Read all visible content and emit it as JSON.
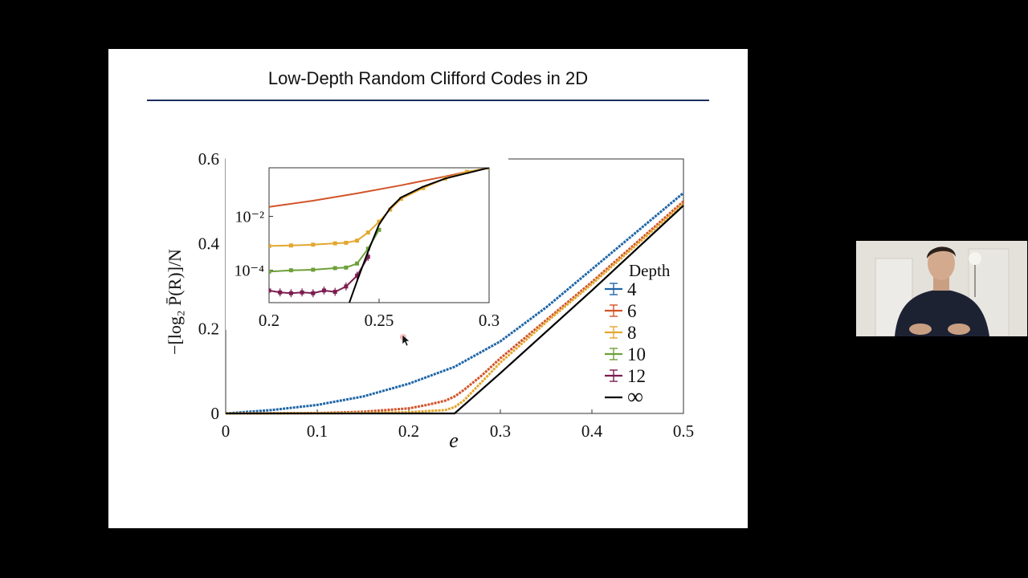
{
  "slide": {
    "title": "Low-Depth Random Clifford Codes in 2D"
  },
  "colors": {
    "depth4": "#1f66a7",
    "depth6": "#d2542a",
    "depth8": "#e3a72f",
    "depth10": "#6ea03a",
    "depth12": "#7c1d4f",
    "infinity": "#000000",
    "title_rule": "#1d2f5e"
  },
  "chart_data": [
    {
      "type": "line",
      "role": "main",
      "title": "",
      "xlabel": "e",
      "ylabel": "−[log₂ P̄(R)]/N",
      "xlim": [
        0,
        0.5
      ],
      "ylim": [
        0,
        0.6
      ],
      "xticks": [
        "0",
        "0.1",
        "0.2",
        "0.3",
        "0.4",
        "0.5"
      ],
      "yticks": [
        "0",
        "0.2",
        "0.4",
        "0.6"
      ],
      "legend": {
        "title": "Depth",
        "placement": "right",
        "labels": [
          "4",
          "6",
          "8",
          "10",
          "12",
          "∞"
        ]
      },
      "series": [
        {
          "name": "4",
          "x": [
            0,
            0.05,
            0.1,
            0.15,
            0.2,
            0.25,
            0.3,
            0.35,
            0.4,
            0.45,
            0.5
          ],
          "y": [
            0,
            0.008,
            0.02,
            0.04,
            0.07,
            0.11,
            0.17,
            0.25,
            0.34,
            0.43,
            0.52
          ]
        },
        {
          "name": "6",
          "x": [
            0,
            0.1,
            0.15,
            0.2,
            0.22,
            0.24,
            0.25,
            0.26,
            0.28,
            0.3,
            0.35,
            0.4,
            0.45,
            0.5
          ],
          "y": [
            0,
            0.001,
            0.004,
            0.012,
            0.02,
            0.03,
            0.04,
            0.055,
            0.09,
            0.13,
            0.22,
            0.31,
            0.405,
            0.5
          ]
        },
        {
          "name": "8",
          "x": [
            0,
            0.15,
            0.2,
            0.24,
            0.25,
            0.26,
            0.28,
            0.3,
            0.35,
            0.4,
            0.45,
            0.5
          ],
          "y": [
            0,
            0.001,
            0.003,
            0.008,
            0.015,
            0.03,
            0.075,
            0.12,
            0.215,
            0.305,
            0.4,
            0.495
          ]
        },
        {
          "name": "∞",
          "x": [
            0,
            0.25,
            0.3,
            0.4,
            0.5
          ],
          "y": [
            0,
            0,
            0.095,
            0.29,
            0.49
          ]
        }
      ]
    },
    {
      "type": "line",
      "role": "inset",
      "xlabel": "",
      "ylabel": "",
      "xlim": [
        0.2,
        0.3
      ],
      "ylim_log10": [
        -5.2,
        -0.2
      ],
      "y_scale": "log",
      "xticks": [
        "0.2",
        "0.25",
        "0.3"
      ],
      "yticks": [
        "10⁻²",
        "10⁻⁴"
      ],
      "series": [
        {
          "name": "6",
          "x": [
            0.2,
            0.22,
            0.24,
            0.26,
            0.28,
            0.29
          ],
          "y_log10": [
            -1.65,
            -1.42,
            -1.15,
            -0.85,
            -0.52,
            -0.35
          ]
        },
        {
          "name": "8",
          "x": [
            0.2,
            0.21,
            0.22,
            0.23,
            0.235,
            0.24,
            0.245,
            0.25,
            0.255,
            0.26,
            0.27,
            0.28,
            0.29,
            0.3
          ],
          "y_log10": [
            -3.1,
            -3.08,
            -3.05,
            -3.0,
            -2.98,
            -2.9,
            -2.6,
            -2.2,
            -1.75,
            -1.35,
            -0.95,
            -0.6,
            -0.35,
            -0.2
          ]
        },
        {
          "name": "10",
          "x": [
            0.2,
            0.21,
            0.22,
            0.23,
            0.235,
            0.24,
            0.245,
            0.25
          ],
          "y_log10": [
            -4.05,
            -4.0,
            -3.98,
            -3.92,
            -3.9,
            -3.75,
            -3.2,
            -2.5
          ]
        },
        {
          "name": "12",
          "x": [
            0.2,
            0.205,
            0.21,
            0.215,
            0.22,
            0.225,
            0.23,
            0.235,
            0.24,
            0.245
          ],
          "y_log10": [
            -4.75,
            -4.82,
            -4.85,
            -4.82,
            -4.85,
            -4.75,
            -4.8,
            -4.6,
            -4.2,
            -3.5
          ]
        },
        {
          "name": "∞",
          "x": [
            0.2365,
            0.24,
            0.245,
            0.25,
            0.255,
            0.26,
            0.27,
            0.28,
            0.29,
            0.3
          ],
          "y_log10": [
            -5.2,
            -4.4,
            -3.3,
            -2.3,
            -1.7,
            -1.3,
            -0.9,
            -0.6,
            -0.4,
            -0.2
          ]
        }
      ]
    }
  ]
}
